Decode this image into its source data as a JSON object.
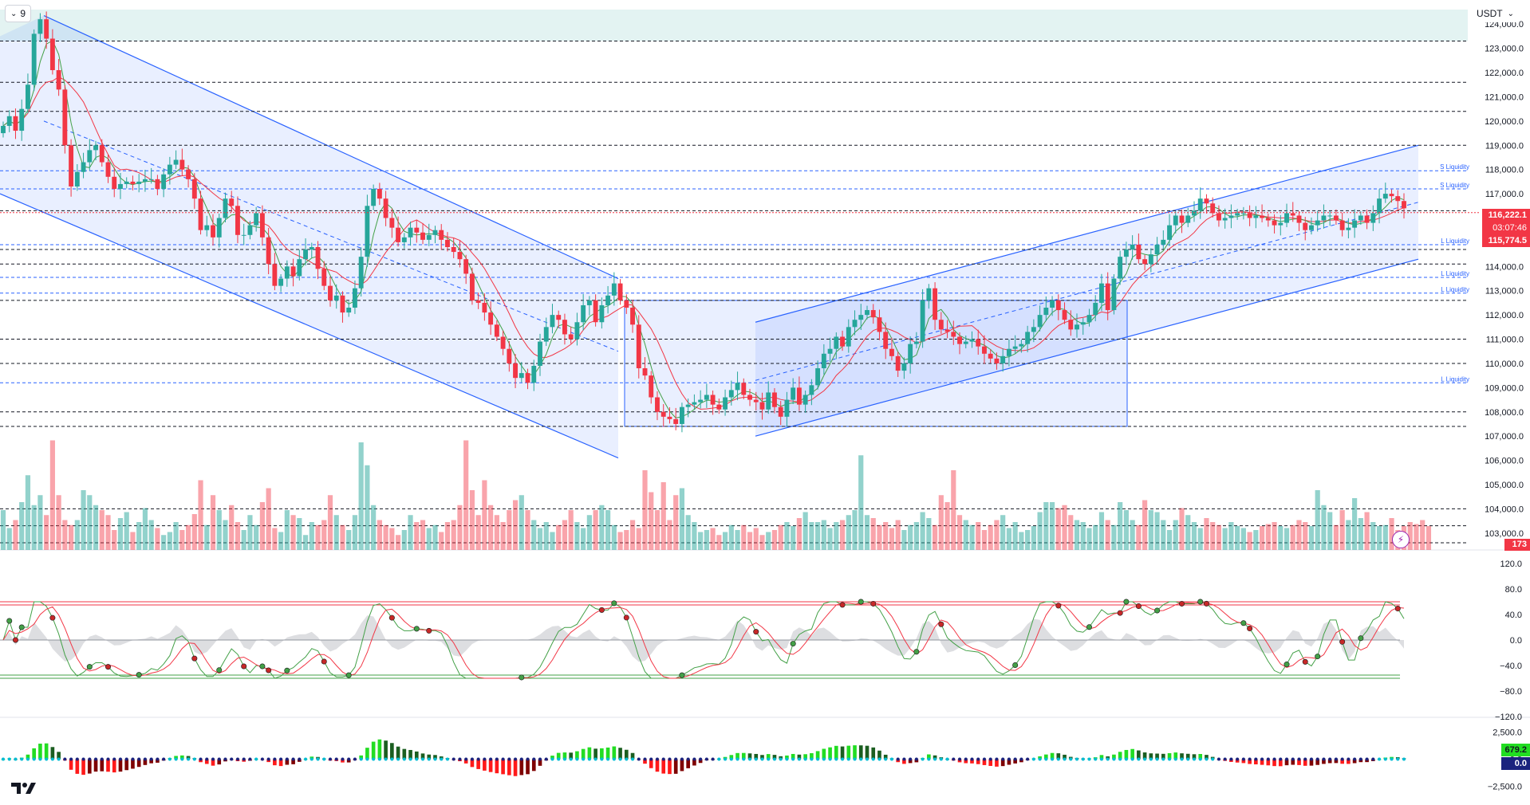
{
  "toolbar": {
    "interval": "9",
    "currency": "USDT"
  },
  "icons": {
    "interval_chevron": "chevron-down-icon",
    "currency_chevron": "chevron-down-icon",
    "logo": "tradingview-logo-icon",
    "alert": "lightning-icon"
  },
  "colors": {
    "up": "#26a69a",
    "down": "#f23645",
    "channel": "#2962ff",
    "channel_fill": "rgba(41,98,255,0.10)",
    "liquidity": "#2962ff",
    "ma": "#f23645",
    "ma2": "#43a047",
    "top_band": "rgba(38,166,154,0.13)"
  },
  "price_tags": {
    "last_price": "116,222.1",
    "countdown": "03:07:46",
    "ma_value": "115,774.5",
    "volume": "173"
  },
  "macd_tags": {
    "histogram": "679.2",
    "zero": "0.0"
  },
  "chart_data": [
    {
      "type": "candlestick",
      "ylim": [
        102500,
        124600
      ],
      "y_ticks": [
        "124,000.0",
        "123,000.0",
        "122,000.0",
        "121,000.0",
        "120,000.0",
        "119,000.0",
        "118,000.0",
        "117,000.0",
        "116,000.0",
        "115,000.0",
        "114,000.0",
        "113,000.0",
        "112,000.0",
        "111,000.0",
        "110,000.0",
        "109,000.0",
        "108,000.0",
        "107,000.0",
        "106,000.0",
        "105,000.0",
        "104,000.0",
        "103,000.0"
      ],
      "y_tick_values": [
        124000,
        123000,
        122000,
        121000,
        120000,
        119000,
        118000,
        117000,
        116000,
        115000,
        114000,
        113000,
        112000,
        111000,
        110000,
        109000,
        108000,
        107000,
        106000,
        105000,
        104000,
        103000
      ],
      "support_resistance_levels": [
        123300,
        121600,
        120400,
        119000,
        116300,
        114700,
        114100,
        112600,
        111000,
        110000,
        108000,
        107400,
        104000,
        103300,
        102600
      ],
      "liquidity_levels": [
        {
          "label": "S Liquidity",
          "price": 117950
        },
        {
          "label": "S Liquidity",
          "price": 117200
        },
        {
          "label": "L Liquidity",
          "price": 114900
        },
        {
          "label": "L Liquidity",
          "price": 113550
        },
        {
          "label": "L Liquidity",
          "price": 112900
        },
        {
          "label": "L Liquidity",
          "price": 109200
        }
      ],
      "closes": [
        119800,
        120200,
        119600,
        120500,
        121500,
        123600,
        124200,
        123400,
        122100,
        121300,
        119000,
        117300,
        117900,
        118300,
        118800,
        119000,
        118300,
        117700,
        117200,
        117400,
        117500,
        117400,
        117500,
        117600,
        117600,
        117200,
        117800,
        118200,
        118400,
        118000,
        117600,
        116800,
        115500,
        115700,
        115200,
        116000,
        116800,
        116500,
        115300,
        115300,
        115700,
        116200,
        115200,
        114100,
        113200,
        113500,
        114000,
        113600,
        114300,
        114700,
        114800,
        113900,
        113200,
        112600,
        112800,
        112100,
        112300,
        113100,
        114400,
        116500,
        117200,
        116800,
        116000,
        115600,
        115000,
        115200,
        115600,
        115400,
        115100,
        115300,
        115500,
        115100,
        114800,
        114600,
        114300,
        113700,
        112600,
        112500,
        112100,
        111600,
        111100,
        110600,
        110000,
        109400,
        109600,
        109200,
        109900,
        110900,
        111500,
        112000,
        111800,
        111200,
        111000,
        111700,
        112400,
        112600,
        111700,
        112400,
        112800,
        113300,
        112600,
        112300,
        111600,
        109800,
        109500,
        108600,
        108000,
        107800,
        107700,
        107500,
        108200,
        108300,
        108400,
        108500,
        108700,
        108300,
        108100,
        108600,
        108900,
        109200,
        108700,
        108500,
        108400,
        108100,
        108800,
        108200,
        107800,
        108500,
        109000,
        108300,
        108700,
        109100,
        109800,
        110400,
        110600,
        111100,
        110700,
        111500,
        111800,
        112000,
        112200,
        111900,
        111300,
        110600,
        110300,
        109700,
        110000,
        110800,
        110900,
        112600,
        113100,
        111800,
        111400,
        111300,
        111100,
        110800,
        110900,
        111000,
        110700,
        110400,
        110200,
        110000,
        110300,
        110600,
        110700,
        110800,
        111300,
        111500,
        112000,
        112300,
        112600,
        112200,
        111800,
        111400,
        111600,
        111700,
        112000,
        112500,
        113300,
        112200,
        113500,
        114400,
        114700,
        114900,
        114300,
        114100,
        114500,
        114900,
        115100,
        115700,
        116100,
        115800,
        116100,
        116300,
        116800,
        116600,
        116200,
        115900,
        116000,
        116100,
        116200,
        116200,
        116000,
        116100,
        116000,
        115900,
        115700,
        115800,
        116200,
        116100,
        115800,
        115500,
        115700,
        115900,
        116100,
        116100,
        115900,
        115500,
        115600,
        115900,
        116100,
        115800,
        116200,
        116800,
        117000,
        116900,
        116700,
        116400
      ]
    },
    {
      "type": "bar",
      "name": "Volume",
      "values": [
        40,
        22,
        30,
        48,
        75,
        45,
        55,
        35,
        110,
        55,
        30,
        25,
        30,
        60,
        55,
        45,
        40,
        35,
        20,
        32,
        38,
        18,
        28,
        42,
        30,
        22,
        15,
        18,
        28,
        20,
        25,
        36,
        70,
        25,
        55,
        40,
        30,
        45,
        28,
        20,
        35,
        25,
        48,
        62,
        22,
        18,
        40,
        35,
        32,
        15,
        28,
        25,
        30,
        55,
        35,
        25,
        20,
        35,
        108,
        85,
        45,
        30,
        25,
        22,
        15,
        20,
        35,
        28,
        30,
        22,
        25,
        18,
        28,
        30,
        45,
        110,
        60,
        35,
        70,
        45,
        35,
        28,
        40,
        50,
        55,
        40,
        30,
        22,
        28,
        18,
        25,
        30,
        40,
        28,
        22,
        35,
        40,
        45,
        40,
        25,
        18,
        20,
        30,
        22,
        80,
        58,
        40,
        68,
        30,
        55,
        62,
        35,
        28,
        18,
        20,
        22,
        15,
        18,
        25,
        20,
        25,
        18,
        22,
        15,
        18,
        20,
        25,
        28,
        24,
        32,
        38,
        28,
        28,
        30,
        22,
        28,
        30,
        35,
        40,
        95,
        35,
        32,
        25,
        28,
        22,
        30,
        20,
        25,
        28,
        38,
        32,
        25,
        55,
        48,
        80,
        35,
        30,
        25,
        28,
        20,
        25,
        30,
        35,
        22,
        28,
        18,
        20,
        24,
        38,
        48,
        48,
        42,
        45,
        35,
        30,
        28,
        22,
        25,
        38,
        30,
        25,
        48,
        40,
        30,
        25,
        50,
        40,
        38,
        30,
        20,
        30,
        42,
        35,
        28,
        22,
        32,
        28,
        25,
        22,
        28,
        24,
        22,
        18,
        20,
        24,
        26,
        28,
        24,
        22,
        25,
        30,
        28,
        24,
        60,
        45,
        38,
        25,
        40,
        30,
        52,
        32,
        38,
        28,
        24,
        25,
        32,
        20,
        24,
        28,
        26,
        30,
        24
      ]
    },
    {
      "type": "line",
      "name": "Oscillator",
      "ylim": [
        -120,
        120
      ],
      "y_ticks": [
        "120.0",
        "80.0",
        "40.0",
        "0.0",
        "−40.0",
        "−80.0",
        "−120.0"
      ],
      "y_tick_values": [
        120,
        80,
        40,
        0,
        -40,
        -80,
        -120
      ],
      "levels": [
        60,
        55,
        -55,
        -60
      ]
    },
    {
      "type": "bar",
      "name": "Histogram",
      "ylim": [
        -3500,
        3500
      ],
      "y_ticks": [
        "2,500.0",
        "0.0",
        "−2,500.0"
      ],
      "y_tick_values": [
        2500,
        0,
        -2500
      ]
    }
  ]
}
